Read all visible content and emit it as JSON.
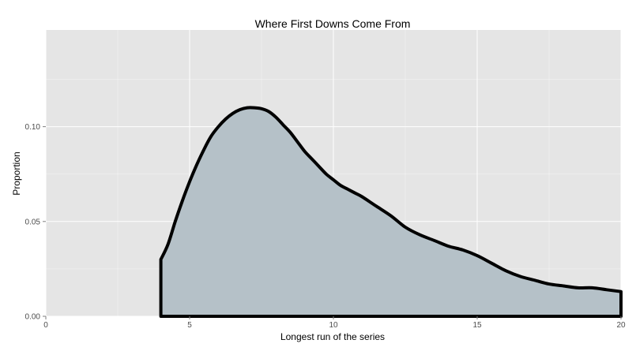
{
  "chart_data": {
    "type": "area",
    "title": "Where First Downs Come From",
    "xlabel": "Longest run of the series",
    "ylabel": "Proportion",
    "xlim": [
      0,
      20
    ],
    "ylim": [
      0,
      0.151
    ],
    "x_ticks": [
      0,
      5,
      10,
      15,
      20
    ],
    "x_tick_labels": [
      "0",
      "5",
      "10",
      "15",
      "20"
    ],
    "y_ticks": [
      0,
      0.05,
      0.1
    ],
    "y_tick_labels": [
      "0.00",
      "0.05",
      "0.10"
    ],
    "grid": true,
    "legend": "none",
    "colors": {
      "panel": "#e5e5e5",
      "grid": "#ffffff",
      "fill": "#b5c1c8",
      "line": "#000000"
    },
    "series": [
      {
        "x": [
          4.0,
          4.0,
          4.25,
          4.5,
          4.75,
          5.0,
          5.25,
          5.5,
          5.75,
          6.0,
          6.25,
          6.5,
          6.75,
          7.0,
          7.25,
          7.5,
          7.75,
          8.0,
          8.25,
          8.5,
          8.75,
          9.0,
          9.25,
          9.5,
          9.75,
          10.0,
          10.25,
          10.5,
          10.75,
          11.0,
          11.5,
          12.0,
          12.5,
          13.0,
          13.5,
          14.0,
          14.5,
          15.0,
          15.5,
          16.0,
          16.5,
          17.0,
          17.5,
          18.0,
          18.5,
          19.0,
          19.5,
          20.0
        ],
        "y": [
          0.0,
          0.03,
          0.038,
          0.05,
          0.061,
          0.071,
          0.08,
          0.088,
          0.095,
          0.1,
          0.104,
          0.107,
          0.109,
          0.11,
          0.11,
          0.1095,
          0.108,
          0.105,
          0.101,
          0.097,
          0.092,
          0.087,
          0.083,
          0.079,
          0.075,
          0.072,
          0.069,
          0.067,
          0.065,
          0.063,
          0.058,
          0.053,
          0.047,
          0.043,
          0.04,
          0.037,
          0.035,
          0.032,
          0.028,
          0.024,
          0.021,
          0.019,
          0.017,
          0.016,
          0.015,
          0.015,
          0.014,
          0.013
        ]
      }
    ]
  }
}
